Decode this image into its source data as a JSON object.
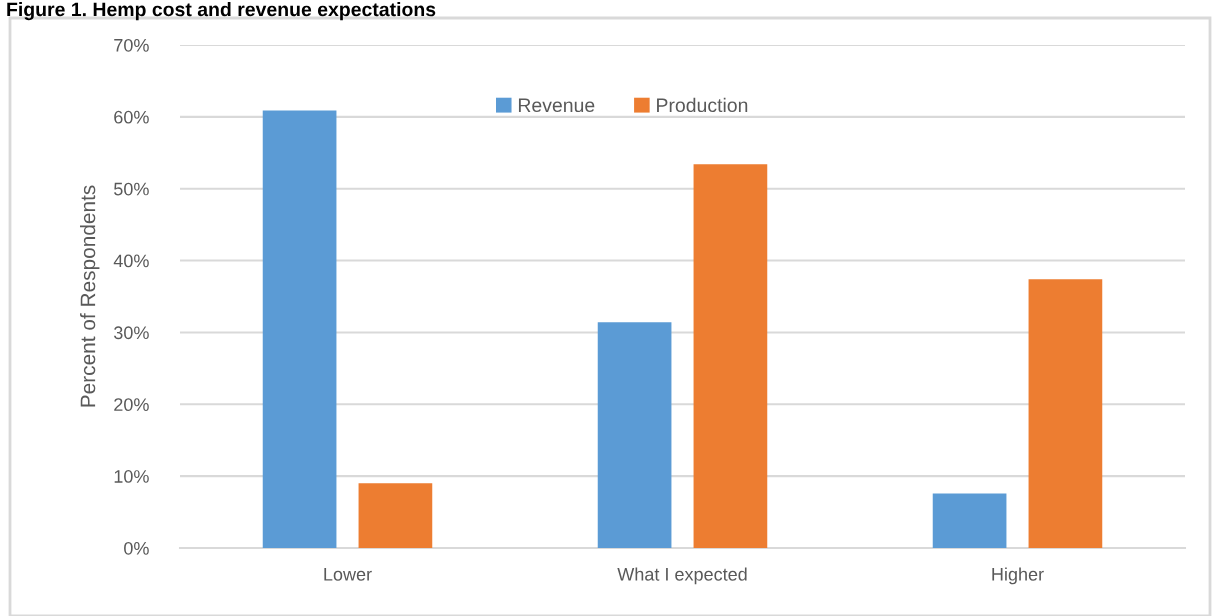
{
  "chart_data": {
    "type": "bar",
    "title": "Figure 1. Hemp cost and revenue expectations",
    "ylabel": "Percent of Respondents",
    "categories": [
      "Lower",
      "What I expected",
      "Higher"
    ],
    "series": [
      {
        "name": "Revenue",
        "color": "#5b9bd5",
        "values": [
          60.9,
          31.4,
          7.6
        ]
      },
      {
        "name": "Production",
        "color": "#ed7d31",
        "values": [
          9.0,
          53.4,
          37.4
        ]
      }
    ],
    "ylim": [
      0,
      70
    ],
    "yticks": [
      {
        "value": 0,
        "label": "0%"
      },
      {
        "value": 10,
        "label": "10%"
      },
      {
        "value": 20,
        "label": "20%"
      },
      {
        "value": 30,
        "label": "30%"
      },
      {
        "value": 40,
        "label": "40%"
      },
      {
        "value": 50,
        "label": "50%"
      },
      {
        "value": 60,
        "label": "60%"
      },
      {
        "value": 70,
        "label": "70%"
      }
    ],
    "grid": "y",
    "legend": "top"
  }
}
